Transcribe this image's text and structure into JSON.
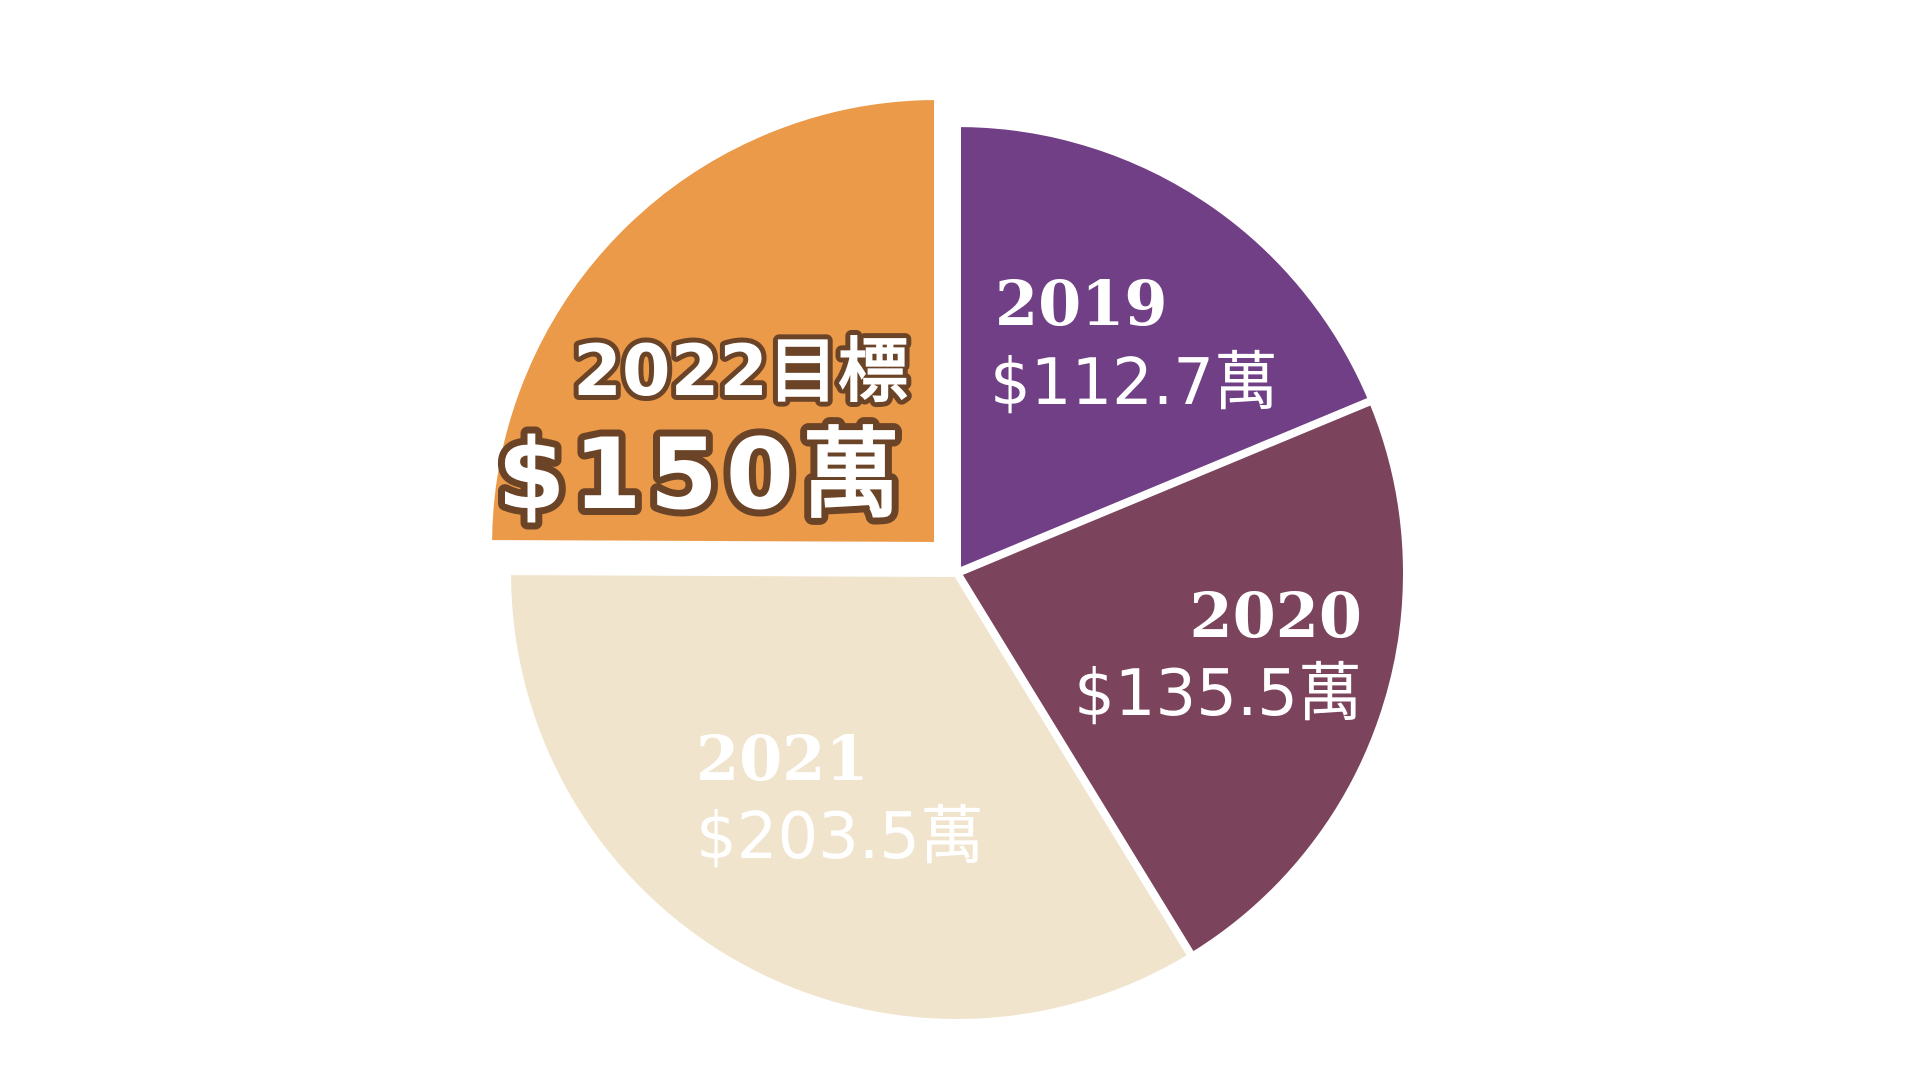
{
  "chart_data": {
    "type": "pie",
    "slices": [
      {
        "year": "2019",
        "amount": "$112.7萬",
        "value": 112.7,
        "color": "#713f86",
        "text_color": "#ffffff"
      },
      {
        "year": "2020",
        "amount": "$135.5萬",
        "value": 135.5,
        "color": "#7b445c",
        "text_color": "#ffffff"
      },
      {
        "year": "2021",
        "amount": "$203.5萬",
        "value": 203.5,
        "color": "#f0e4cd",
        "text_color": "#ffffff"
      },
      {
        "year": "2022目標",
        "amount": "$150萬",
        "value": 150,
        "color": "#eb9a49",
        "text_color": "#ffffff",
        "outline_color": "#6b4327",
        "exploded": true
      }
    ]
  }
}
